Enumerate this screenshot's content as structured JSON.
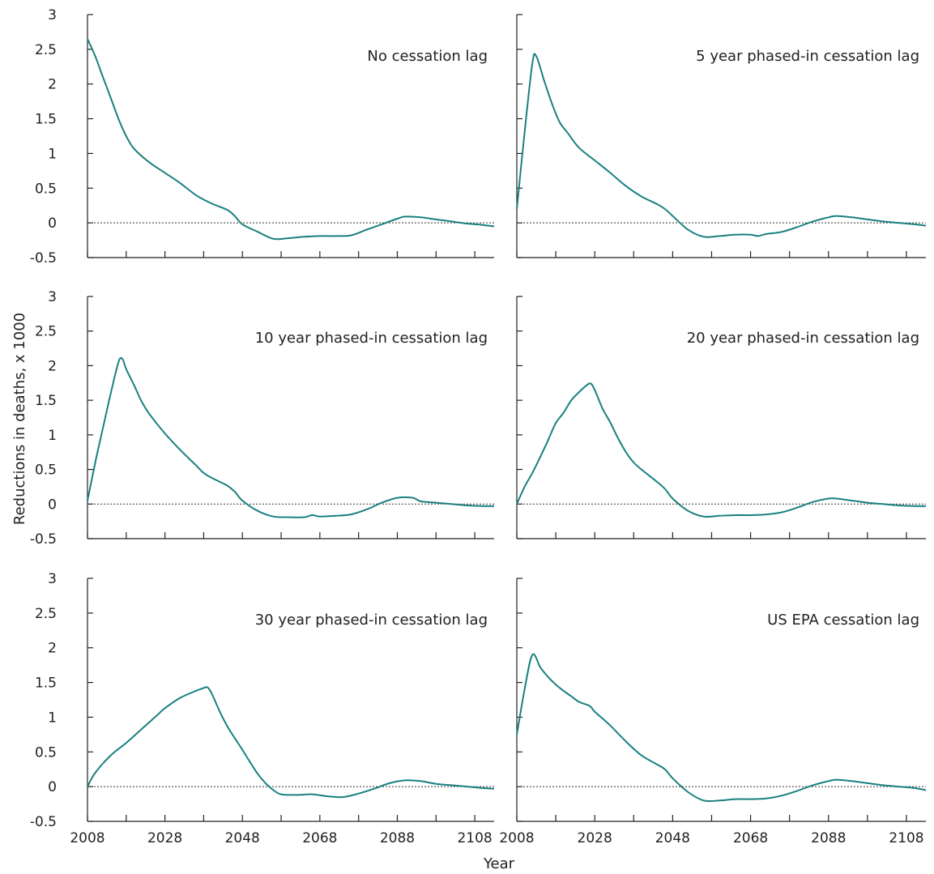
{
  "figure": {
    "ylabel": "Reductions in deaths, x 1000",
    "xlabel": "Year"
  },
  "chart_data": [
    {
      "type": "line",
      "title": "No cessation lag",
      "xlim": [
        2008,
        2113
      ],
      "ylim": [
        -0.5,
        3
      ],
      "xticks": [
        2008,
        2028,
        2048,
        2068,
        2088,
        2108
      ],
      "yticks": [
        3,
        2.5,
        2,
        1.5,
        1,
        0.5,
        0,
        -0.5
      ],
      "reference_line": 0,
      "color": "#1a8080",
      "series": [
        {
          "values": [
            [
              2008,
              2.65
            ],
            [
              2010,
              2.4
            ],
            [
              2012,
              2.1
            ],
            [
              2014,
              1.8
            ],
            [
              2016,
              1.5
            ],
            [
              2018,
              1.25
            ],
            [
              2020,
              1.07
            ],
            [
              2024,
              0.87
            ],
            [
              2028,
              0.72
            ],
            [
              2032,
              0.57
            ],
            [
              2036,
              0.4
            ],
            [
              2040,
              0.28
            ],
            [
              2044,
              0.19
            ],
            [
              2046,
              0.1
            ],
            [
              2048,
              -0.02
            ],
            [
              2052,
              -0.13
            ],
            [
              2056,
              -0.23
            ],
            [
              2060,
              -0.22
            ],
            [
              2064,
              -0.2
            ],
            [
              2068,
              -0.19
            ],
            [
              2072,
              -0.19
            ],
            [
              2076,
              -0.18
            ],
            [
              2080,
              -0.1
            ],
            [
              2084,
              -0.02
            ],
            [
              2088,
              0.06
            ],
            [
              2090,
              0.09
            ],
            [
              2094,
              0.08
            ],
            [
              2098,
              0.05
            ],
            [
              2102,
              0.02
            ],
            [
              2106,
              -0.01
            ],
            [
              2110,
              -0.03
            ],
            [
              2113,
              -0.05
            ]
          ]
        }
      ]
    },
    {
      "type": "line",
      "title": "5 year phased-in cessation lag",
      "xlim": [
        2008,
        2113
      ],
      "ylim": [
        -0.5,
        3
      ],
      "xticks": [
        2008,
        2028,
        2048,
        2068,
        2088,
        2108
      ],
      "yticks": [
        3,
        2.5,
        2,
        1.5,
        1,
        0.5,
        0,
        -0.5
      ],
      "reference_line": 0,
      "color": "#1a8080",
      "series": [
        {
          "values": [
            [
              2008,
              0.2
            ],
            [
              2010,
              1.3
            ],
            [
              2012,
              2.3
            ],
            [
              2013,
              2.4
            ],
            [
              2015,
              2.05
            ],
            [
              2017,
              1.72
            ],
            [
              2019,
              1.45
            ],
            [
              2021,
              1.3
            ],
            [
              2024,
              1.08
            ],
            [
              2028,
              0.9
            ],
            [
              2032,
              0.72
            ],
            [
              2036,
              0.53
            ],
            [
              2040,
              0.38
            ],
            [
              2044,
              0.27
            ],
            [
              2046,
              0.2
            ],
            [
              2048,
              0.1
            ],
            [
              2052,
              -0.1
            ],
            [
              2056,
              -0.2
            ],
            [
              2060,
              -0.19
            ],
            [
              2064,
              -0.17
            ],
            [
              2068,
              -0.17
            ],
            [
              2070,
              -0.19
            ],
            [
              2072,
              -0.16
            ],
            [
              2076,
              -0.13
            ],
            [
              2080,
              -0.06
            ],
            [
              2084,
              0.02
            ],
            [
              2088,
              0.08
            ],
            [
              2090,
              0.1
            ],
            [
              2094,
              0.08
            ],
            [
              2098,
              0.05
            ],
            [
              2102,
              0.02
            ],
            [
              2106,
              0.0
            ],
            [
              2110,
              -0.02
            ],
            [
              2113,
              -0.04
            ]
          ]
        }
      ]
    },
    {
      "type": "line",
      "title": "10 year phased-in cessation lag",
      "xlim": [
        2008,
        2113
      ],
      "ylim": [
        -0.5,
        3
      ],
      "xticks": [
        2008,
        2028,
        2048,
        2068,
        2088,
        2108
      ],
      "yticks": [
        3,
        2.5,
        2,
        1.5,
        1,
        0.5,
        0,
        -0.5
      ],
      "reference_line": 0,
      "color": "#1a8080",
      "series": [
        {
          "values": [
            [
              2008,
              0.05
            ],
            [
              2010,
              0.6
            ],
            [
              2012,
              1.1
            ],
            [
              2014,
              1.6
            ],
            [
              2016,
              2.05
            ],
            [
              2017,
              2.1
            ],
            [
              2018,
              1.95
            ],
            [
              2020,
              1.72
            ],
            [
              2022,
              1.48
            ],
            [
              2024,
              1.3
            ],
            [
              2028,
              1.02
            ],
            [
              2032,
              0.78
            ],
            [
              2036,
              0.56
            ],
            [
              2038,
              0.45
            ],
            [
              2040,
              0.38
            ],
            [
              2044,
              0.27
            ],
            [
              2046,
              0.18
            ],
            [
              2048,
              0.05
            ],
            [
              2052,
              -0.1
            ],
            [
              2056,
              -0.18
            ],
            [
              2060,
              -0.19
            ],
            [
              2064,
              -0.19
            ],
            [
              2066,
              -0.16
            ],
            [
              2068,
              -0.18
            ],
            [
              2072,
              -0.17
            ],
            [
              2076,
              -0.15
            ],
            [
              2080,
              -0.08
            ],
            [
              2084,
              0.02
            ],
            [
              2088,
              0.09
            ],
            [
              2092,
              0.09
            ],
            [
              2094,
              0.04
            ],
            [
              2098,
              0.02
            ],
            [
              2102,
              0.0
            ],
            [
              2106,
              -0.02
            ],
            [
              2110,
              -0.03
            ],
            [
              2113,
              -0.03
            ]
          ]
        }
      ]
    },
    {
      "type": "line",
      "title": "20 year phased-in cessation lag",
      "xlim": [
        2008,
        2113
      ],
      "ylim": [
        -0.5,
        3
      ],
      "xticks": [
        2008,
        2028,
        2048,
        2068,
        2088,
        2108
      ],
      "yticks": [
        3,
        2.5,
        2,
        1.5,
        1,
        0.5,
        0,
        -0.5
      ],
      "reference_line": 0,
      "color": "#1a8080",
      "series": [
        {
          "values": [
            [
              2008,
              0.0
            ],
            [
              2010,
              0.25
            ],
            [
              2012,
              0.45
            ],
            [
              2014,
              0.68
            ],
            [
              2016,
              0.92
            ],
            [
              2018,
              1.17
            ],
            [
              2020,
              1.32
            ],
            [
              2022,
              1.5
            ],
            [
              2024,
              1.62
            ],
            [
              2026,
              1.72
            ],
            [
              2027,
              1.74
            ],
            [
              2028,
              1.65
            ],
            [
              2030,
              1.38
            ],
            [
              2032,
              1.18
            ],
            [
              2034,
              0.95
            ],
            [
              2036,
              0.75
            ],
            [
              2038,
              0.6
            ],
            [
              2040,
              0.5
            ],
            [
              2044,
              0.32
            ],
            [
              2046,
              0.22
            ],
            [
              2048,
              0.08
            ],
            [
              2052,
              -0.1
            ],
            [
              2056,
              -0.18
            ],
            [
              2060,
              -0.17
            ],
            [
              2064,
              -0.16
            ],
            [
              2068,
              -0.16
            ],
            [
              2072,
              -0.15
            ],
            [
              2076,
              -0.12
            ],
            [
              2080,
              -0.05
            ],
            [
              2084,
              0.03
            ],
            [
              2088,
              0.08
            ],
            [
              2090,
              0.08
            ],
            [
              2094,
              0.05
            ],
            [
              2098,
              0.02
            ],
            [
              2102,
              0.0
            ],
            [
              2106,
              -0.02
            ],
            [
              2110,
              -0.03
            ],
            [
              2113,
              -0.03
            ]
          ]
        }
      ]
    },
    {
      "type": "line",
      "title": "30 year phased-in cessation lag",
      "xlim": [
        2008,
        2113
      ],
      "ylim": [
        -0.5,
        3
      ],
      "xticks": [
        2008,
        2028,
        2048,
        2068,
        2088,
        2108
      ],
      "yticks": [
        3,
        2.5,
        2,
        1.5,
        1,
        0.5,
        0,
        -0.5
      ],
      "reference_line": 0,
      "color": "#1a8080",
      "series": [
        {
          "values": [
            [
              2008,
              0.0
            ],
            [
              2010,
              0.2
            ],
            [
              2014,
              0.45
            ],
            [
              2018,
              0.63
            ],
            [
              2022,
              0.83
            ],
            [
              2026,
              1.03
            ],
            [
              2028,
              1.13
            ],
            [
              2032,
              1.28
            ],
            [
              2036,
              1.38
            ],
            [
              2038,
              1.42
            ],
            [
              2039,
              1.43
            ],
            [
              2040,
              1.35
            ],
            [
              2042,
              1.1
            ],
            [
              2044,
              0.88
            ],
            [
              2046,
              0.7
            ],
            [
              2048,
              0.53
            ],
            [
              2050,
              0.35
            ],
            [
              2052,
              0.18
            ],
            [
              2054,
              0.05
            ],
            [
              2056,
              -0.05
            ],
            [
              2058,
              -0.11
            ],
            [
              2062,
              -0.12
            ],
            [
              2066,
              -0.11
            ],
            [
              2070,
              -0.14
            ],
            [
              2074,
              -0.15
            ],
            [
              2078,
              -0.1
            ],
            [
              2082,
              -0.03
            ],
            [
              2086,
              0.05
            ],
            [
              2090,
              0.09
            ],
            [
              2094,
              0.08
            ],
            [
              2098,
              0.04
            ],
            [
              2102,
              0.02
            ],
            [
              2106,
              0.0
            ],
            [
              2110,
              -0.02
            ],
            [
              2113,
              -0.03
            ]
          ]
        }
      ]
    },
    {
      "type": "line",
      "title": "US EPA cessation lag",
      "xlim": [
        2008,
        2113
      ],
      "ylim": [
        -0.5,
        3
      ],
      "xticks": [
        2008,
        2028,
        2048,
        2068,
        2088,
        2108
      ],
      "yticks": [
        3,
        2.5,
        2,
        1.5,
        1,
        0.5,
        0,
        -0.5
      ],
      "reference_line": 0,
      "color": "#1a8080",
      "series": [
        {
          "values": [
            [
              2008,
              0.75
            ],
            [
              2010,
              1.4
            ],
            [
              2012,
              1.9
            ],
            [
              2014,
              1.72
            ],
            [
              2016,
              1.58
            ],
            [
              2018,
              1.47
            ],
            [
              2020,
              1.38
            ],
            [
              2022,
              1.3
            ],
            [
              2024,
              1.22
            ],
            [
              2026,
              1.18
            ],
            [
              2027,
              1.15
            ],
            [
              2028,
              1.08
            ],
            [
              2032,
              0.88
            ],
            [
              2036,
              0.65
            ],
            [
              2040,
              0.45
            ],
            [
              2044,
              0.32
            ],
            [
              2046,
              0.25
            ],
            [
              2048,
              0.12
            ],
            [
              2052,
              -0.08
            ],
            [
              2056,
              -0.2
            ],
            [
              2060,
              -0.2
            ],
            [
              2064,
              -0.18
            ],
            [
              2068,
              -0.18
            ],
            [
              2072,
              -0.17
            ],
            [
              2076,
              -0.13
            ],
            [
              2080,
              -0.06
            ],
            [
              2084,
              0.02
            ],
            [
              2088,
              0.08
            ],
            [
              2090,
              0.1
            ],
            [
              2094,
              0.08
            ],
            [
              2098,
              0.05
            ],
            [
              2102,
              0.02
            ],
            [
              2106,
              0.0
            ],
            [
              2110,
              -0.02
            ],
            [
              2113,
              -0.05
            ]
          ]
        }
      ]
    }
  ]
}
